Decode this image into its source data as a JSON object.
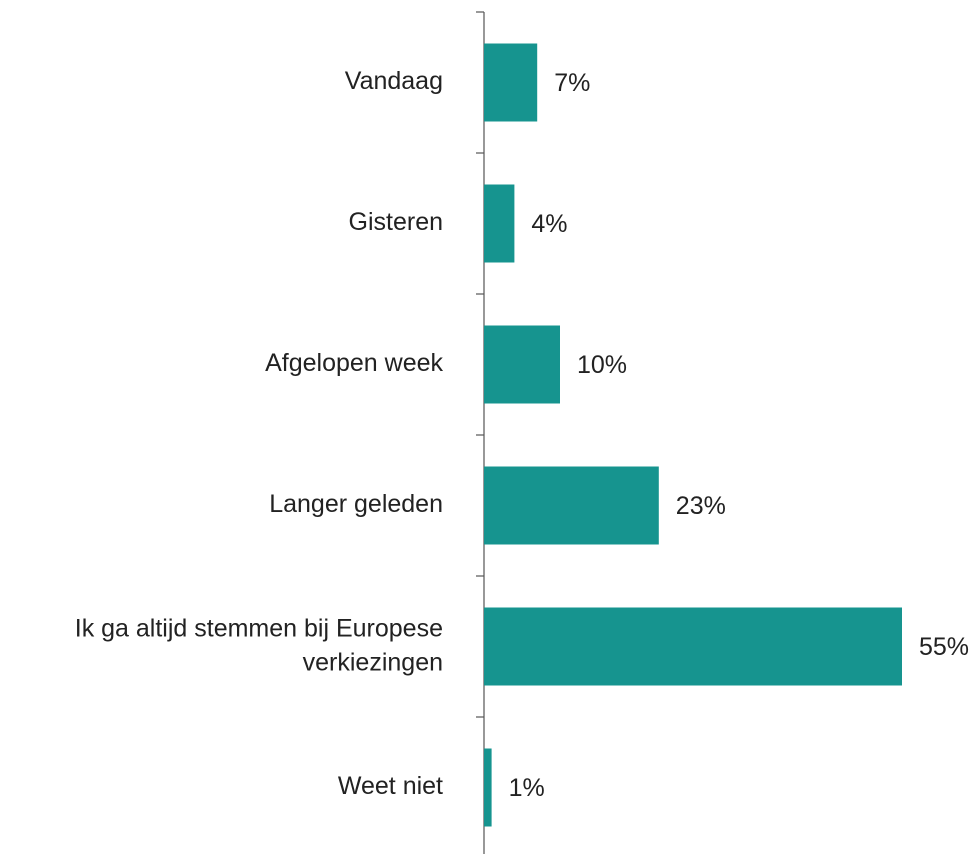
{
  "chart_data": {
    "type": "barh",
    "categories": [
      "Vandaag",
      "Gisteren",
      "Afgelopen week",
      "Langer geleden",
      "Ik ga altijd stemmen bij Europese verkiezingen",
      "Weet niet"
    ],
    "values": [
      7,
      4,
      10,
      23,
      55,
      1
    ],
    "value_labels": [
      "7%",
      "4%",
      "10%",
      "23%",
      "55%",
      "1%"
    ],
    "color": "#16948f"
  }
}
